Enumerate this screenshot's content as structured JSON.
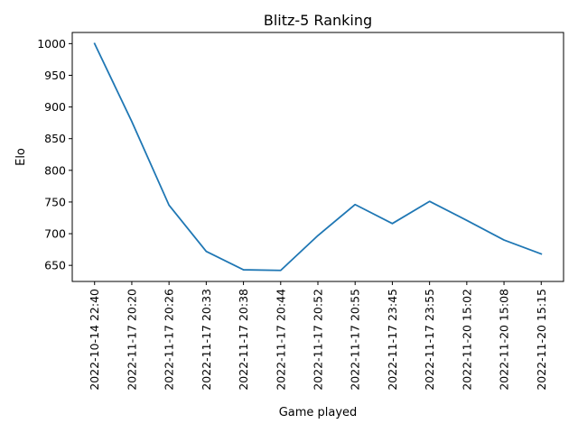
{
  "chart_data": {
    "type": "line",
    "title": "Blitz-5 Ranking",
    "xlabel": "Game played",
    "ylabel": "Elo",
    "x": [
      "2022-10-14 22:40",
      "2022-11-17 20:20",
      "2022-11-17 20:26",
      "2022-11-17 20:33",
      "2022-11-17 20:38",
      "2022-11-17 20:44",
      "2022-11-17 20:52",
      "2022-11-17 20:55",
      "2022-11-17 23:45",
      "2022-11-17 23:55",
      "2022-11-20 15:02",
      "2022-11-20 15:08",
      "2022-11-20 15:15"
    ],
    "series": [
      {
        "values": [
          1000,
          877,
          745,
          672,
          643,
          642,
          697,
          746,
          716,
          751,
          721,
          690,
          668
        ]
      }
    ],
    "ylim": [
      624.6,
      1017.6
    ],
    "yticks": [
      650,
      700,
      750,
      800,
      850,
      900,
      950,
      1000
    ],
    "grid": false,
    "line_color": "#1f77b4"
  }
}
